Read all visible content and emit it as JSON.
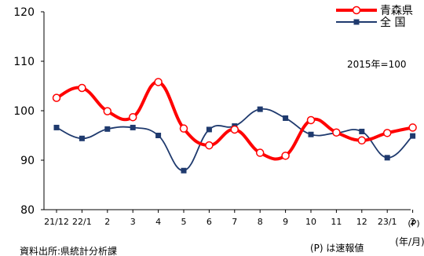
{
  "chart_data": {
    "type": "line",
    "categories": [
      "21/12",
      "22/1",
      "2",
      "3",
      "4",
      "5",
      "6",
      "7",
      "8",
      "9",
      "10",
      "11",
      "12",
      "23/1",
      "2"
    ],
    "axis_suffix": "(P)",
    "axis_unit": "(年/月)",
    "ylim": [
      80,
      120
    ],
    "yticks": [
      80,
      90,
      100,
      110,
      120
    ],
    "grid": false,
    "legend_position": "top-right",
    "base_note": "2015年=100",
    "source": "資料出所:県統計分析課",
    "prelim_note": "(P) は速報値",
    "series": [
      {
        "name": "青森県",
        "color": "#ff0000",
        "values": [
          102.6,
          104.6,
          99.9,
          98.7,
          105.8,
          96.4,
          93.0,
          96.2,
          91.5,
          90.9,
          98.1,
          95.6,
          94.0,
          95.5,
          96.6
        ]
      },
      {
        "name": "全 国",
        "color": "#1f3a6e",
        "values": [
          96.6,
          94.4,
          96.3,
          96.6,
          95.0,
          87.9,
          96.2,
          96.9,
          100.3,
          98.5,
          95.2,
          95.5,
          95.8,
          90.5,
          94.9
        ]
      }
    ]
  }
}
